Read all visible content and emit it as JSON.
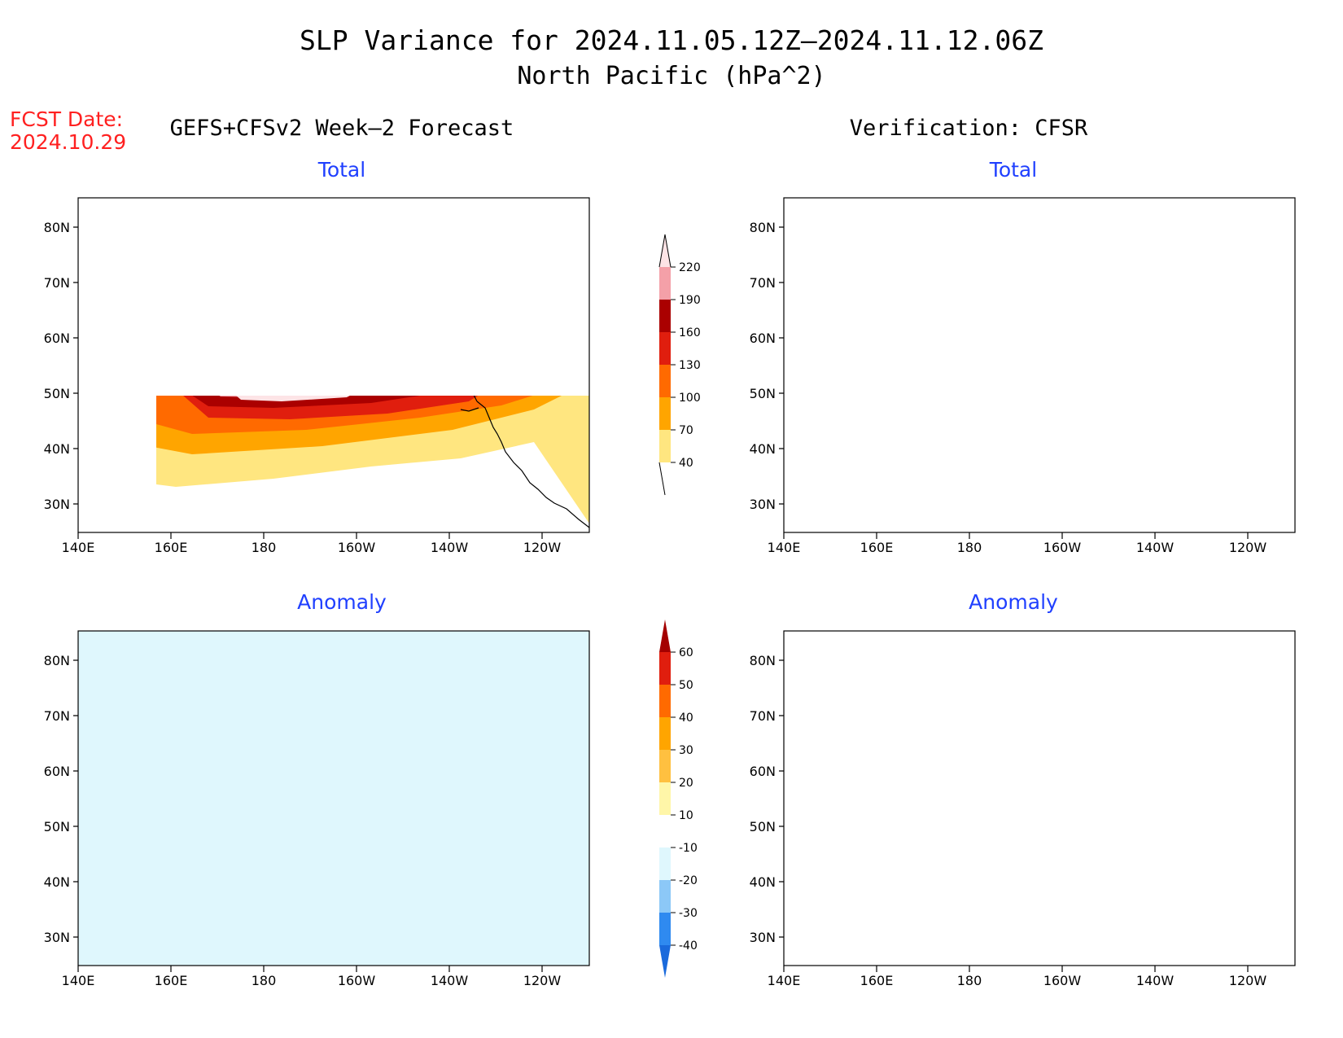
{
  "title": "SLP Variance for 2024.11.05.12Z–2024.11.12.06Z",
  "subtitle": "North Pacific (hPa^2)",
  "fcst_date_label": "FCST Date:",
  "fcst_date_value": "2024.10.29",
  "left_column_label": "GEFS+CFSv2 Week–2 Forecast",
  "right_column_label": "Verification: CFSR",
  "panels": [
    {
      "id": "forecast-total",
      "title": "Total"
    },
    {
      "id": "verification-total",
      "title": "Total"
    },
    {
      "id": "forecast-anomaly",
      "title": "Anomaly"
    },
    {
      "id": "verification-anomaly",
      "title": "Anomaly"
    }
  ],
  "axes": {
    "lon_ticks": [
      "140E",
      "160E",
      "180",
      "160W",
      "140W",
      "120W"
    ],
    "lat_ticks": [
      "80N",
      "70N",
      "60N",
      "50N",
      "40N",
      "30N"
    ]
  },
  "total_colorbar": {
    "levels": [
      "40",
      "70",
      "100",
      "130",
      "160",
      "190",
      "220"
    ],
    "colors": [
      "#ffe680",
      "#ffa500",
      "#ff6a00",
      "#e01e0e",
      "#aa0000",
      "#f4a0a8",
      "#fde4e6"
    ]
  },
  "anomaly_colorbar": {
    "levels": [
      "-40",
      "-30",
      "-20",
      "-10",
      "10",
      "20",
      "30",
      "40",
      "50",
      "60"
    ],
    "colors": [
      "#1a6adc",
      "#2f8af0",
      "#8cc8f7",
      "#dff7fd",
      "#ffffff",
      "#fff6a8",
      "#ffc040",
      "#ffa500",
      "#ff6a00",
      "#e01e0e",
      "#a40000"
    ]
  }
}
